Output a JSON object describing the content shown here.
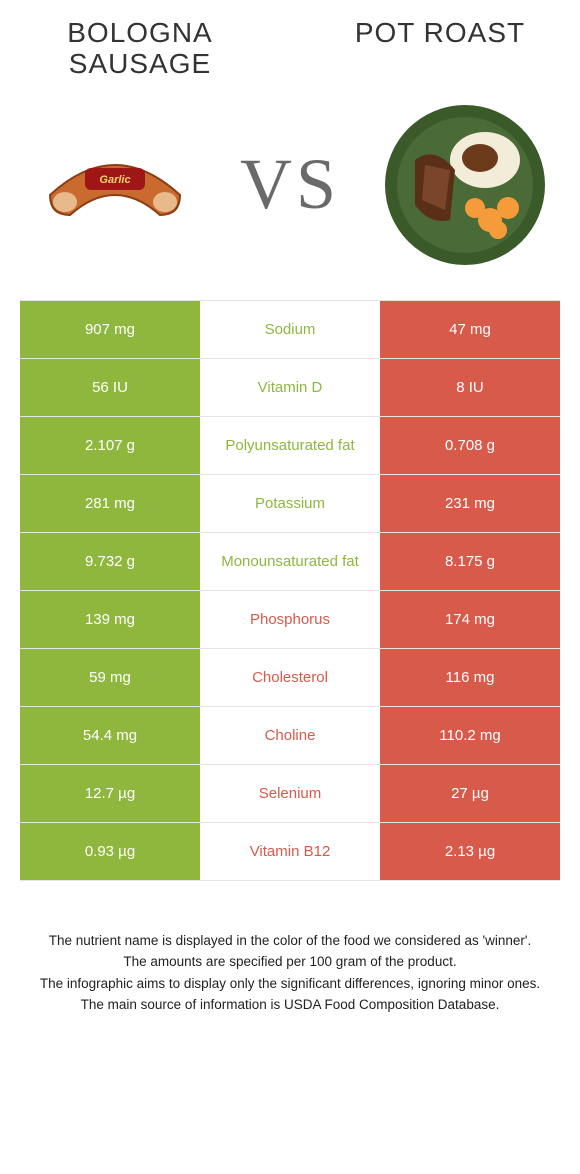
{
  "colors": {
    "left_food": "#8fb73e",
    "right_food": "#d85a4a",
    "bg": "#ffffff",
    "border": "#e5e5e5",
    "title": "#333333",
    "vs": "#6a6a6a",
    "footer_text": "#222222"
  },
  "foods": {
    "left": {
      "title": "Bologna sausage"
    },
    "right": {
      "title": "Pot Roast"
    }
  },
  "vs_label": "VS",
  "rows": [
    {
      "nutrient": "Sodium",
      "left_val": "907 mg",
      "right_val": "47 mg",
      "winner": "left"
    },
    {
      "nutrient": "Vitamin D",
      "left_val": "56 IU",
      "right_val": "8 IU",
      "winner": "left"
    },
    {
      "nutrient": "Polyunsaturated fat",
      "left_val": "2.107 g",
      "right_val": "0.708 g",
      "winner": "left"
    },
    {
      "nutrient": "Potassium",
      "left_val": "281 mg",
      "right_val": "231 mg",
      "winner": "left"
    },
    {
      "nutrient": "Monounsaturated fat",
      "left_val": "9.732 g",
      "right_val": "8.175 g",
      "winner": "left"
    },
    {
      "nutrient": "Phosphorus",
      "left_val": "139 mg",
      "right_val": "174 mg",
      "winner": "right"
    },
    {
      "nutrient": "Cholesterol",
      "left_val": "59 mg",
      "right_val": "116 mg",
      "winner": "right"
    },
    {
      "nutrient": "Choline",
      "left_val": "54.4 mg",
      "right_val": "110.2 mg",
      "winner": "right"
    },
    {
      "nutrient": "Selenium",
      "left_val": "12.7 µg",
      "right_val": "27 µg",
      "winner": "right"
    },
    {
      "nutrient": "Vitamin B12",
      "left_val": "0.93 µg",
      "right_val": "2.13 µg",
      "winner": "right"
    }
  ],
  "footer": [
    "The nutrient name is displayed in the color of the food we considered as 'winner'.",
    "The amounts are specified per 100 gram of the product.",
    "The infographic aims to display only the significant differences, ignoring minor ones.",
    "The main source of information is USDA Food Composition Database."
  ]
}
